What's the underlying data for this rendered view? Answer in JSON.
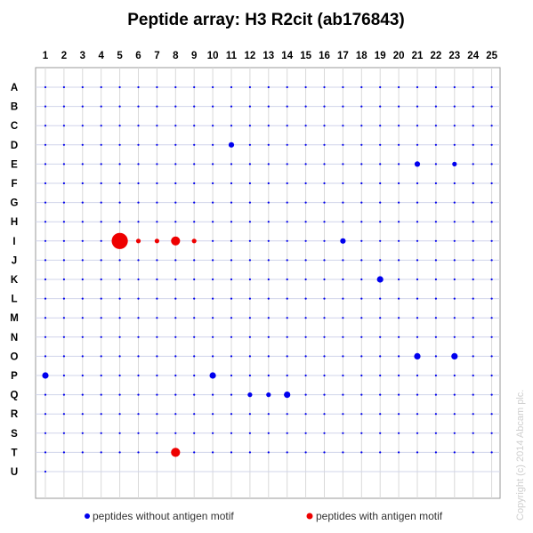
{
  "chart_data": {
    "type": "scatter",
    "title": "Peptide array: H3 R2cit (ab176843)",
    "columns": [
      "1",
      "2",
      "3",
      "4",
      "5",
      "6",
      "7",
      "8",
      "9",
      "10",
      "11",
      "12",
      "13",
      "14",
      "15",
      "16",
      "17",
      "18",
      "19",
      "20",
      "21",
      "22",
      "23",
      "24",
      "25"
    ],
    "rows": [
      "A",
      "B",
      "C",
      "D",
      "E",
      "F",
      "G",
      "H",
      "I",
      "J",
      "K",
      "L",
      "M",
      "N",
      "O",
      "P",
      "Q",
      "R",
      "S",
      "T",
      "U"
    ],
    "grid": true,
    "legend_position": "bottom",
    "series": [
      {
        "name": "peptides without antigen motif",
        "color": "#0000ee"
      },
      {
        "name": "peptides with antigen motif",
        "color": "#ee0000"
      }
    ],
    "highlighted_points": [
      {
        "row": "D",
        "col": 11,
        "size": 2,
        "motif": false
      },
      {
        "row": "E",
        "col": 21,
        "size": 2,
        "motif": false
      },
      {
        "row": "E",
        "col": 23,
        "size": 1.5,
        "motif": false
      },
      {
        "row": "I",
        "col": 5,
        "size": 8,
        "motif": true
      },
      {
        "row": "I",
        "col": 6,
        "size": 1.5,
        "motif": true
      },
      {
        "row": "I",
        "col": 7,
        "size": 1.5,
        "motif": true
      },
      {
        "row": "I",
        "col": 8,
        "size": 4,
        "motif": true
      },
      {
        "row": "I",
        "col": 9,
        "size": 1.5,
        "motif": true
      },
      {
        "row": "I",
        "col": 17,
        "size": 2,
        "motif": false
      },
      {
        "row": "K",
        "col": 19,
        "size": 2.5,
        "motif": false
      },
      {
        "row": "O",
        "col": 21,
        "size": 2.5,
        "motif": false
      },
      {
        "row": "O",
        "col": 23,
        "size": 2.5,
        "motif": false
      },
      {
        "row": "P",
        "col": 1,
        "size": 2.5,
        "motif": false
      },
      {
        "row": "P",
        "col": 10,
        "size": 2.5,
        "motif": false
      },
      {
        "row": "Q",
        "col": 14,
        "size": 2.5,
        "motif": false
      },
      {
        "row": "Q",
        "col": 12,
        "size": 1.5,
        "motif": false
      },
      {
        "row": "Q",
        "col": 13,
        "size": 1.5,
        "motif": false
      },
      {
        "row": "T",
        "col": 8,
        "size": 4,
        "motif": true
      }
    ],
    "last_row_points": 1
  },
  "copyright": "Copyright (c) 2014 Abcam plc."
}
